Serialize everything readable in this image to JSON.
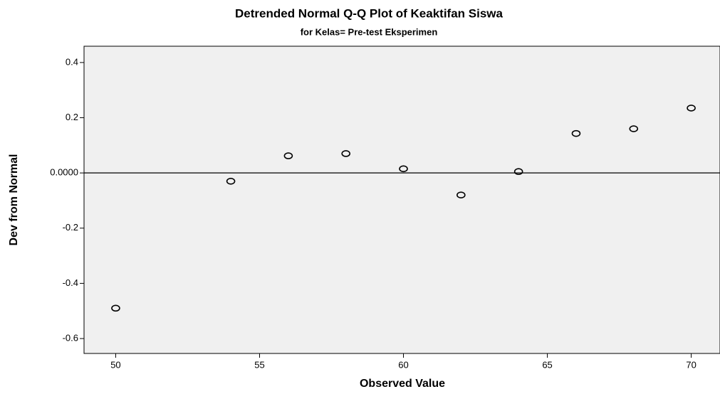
{
  "chart_data": {
    "type": "scatter",
    "title": "Detrended Normal Q-Q Plot of Keaktifan Siswa",
    "subtitle": "for Kelas= Pre-test Eksperimen",
    "xlabel": "Observed Value",
    "ylabel": "Dev from Normal",
    "x": [
      50,
      54,
      56,
      58,
      60,
      62,
      64,
      66,
      68,
      70
    ],
    "values": [
      -0.49,
      -0.03,
      0.062,
      0.07,
      0.015,
      -0.08,
      0.005,
      0.143,
      0.16,
      0.235
    ],
    "color": "#000000",
    "xlim": [
      48.9,
      71.0
    ],
    "xticks": [
      50,
      55,
      60,
      65,
      70
    ],
    "ylim": [
      -0.654,
      0.459
    ],
    "yticks": [
      0.4,
      0.2,
      {
        "value": 0,
        "label": "0.0000"
      },
      -0.2,
      -0.4,
      -0.6
    ],
    "reference_line": 0
  }
}
